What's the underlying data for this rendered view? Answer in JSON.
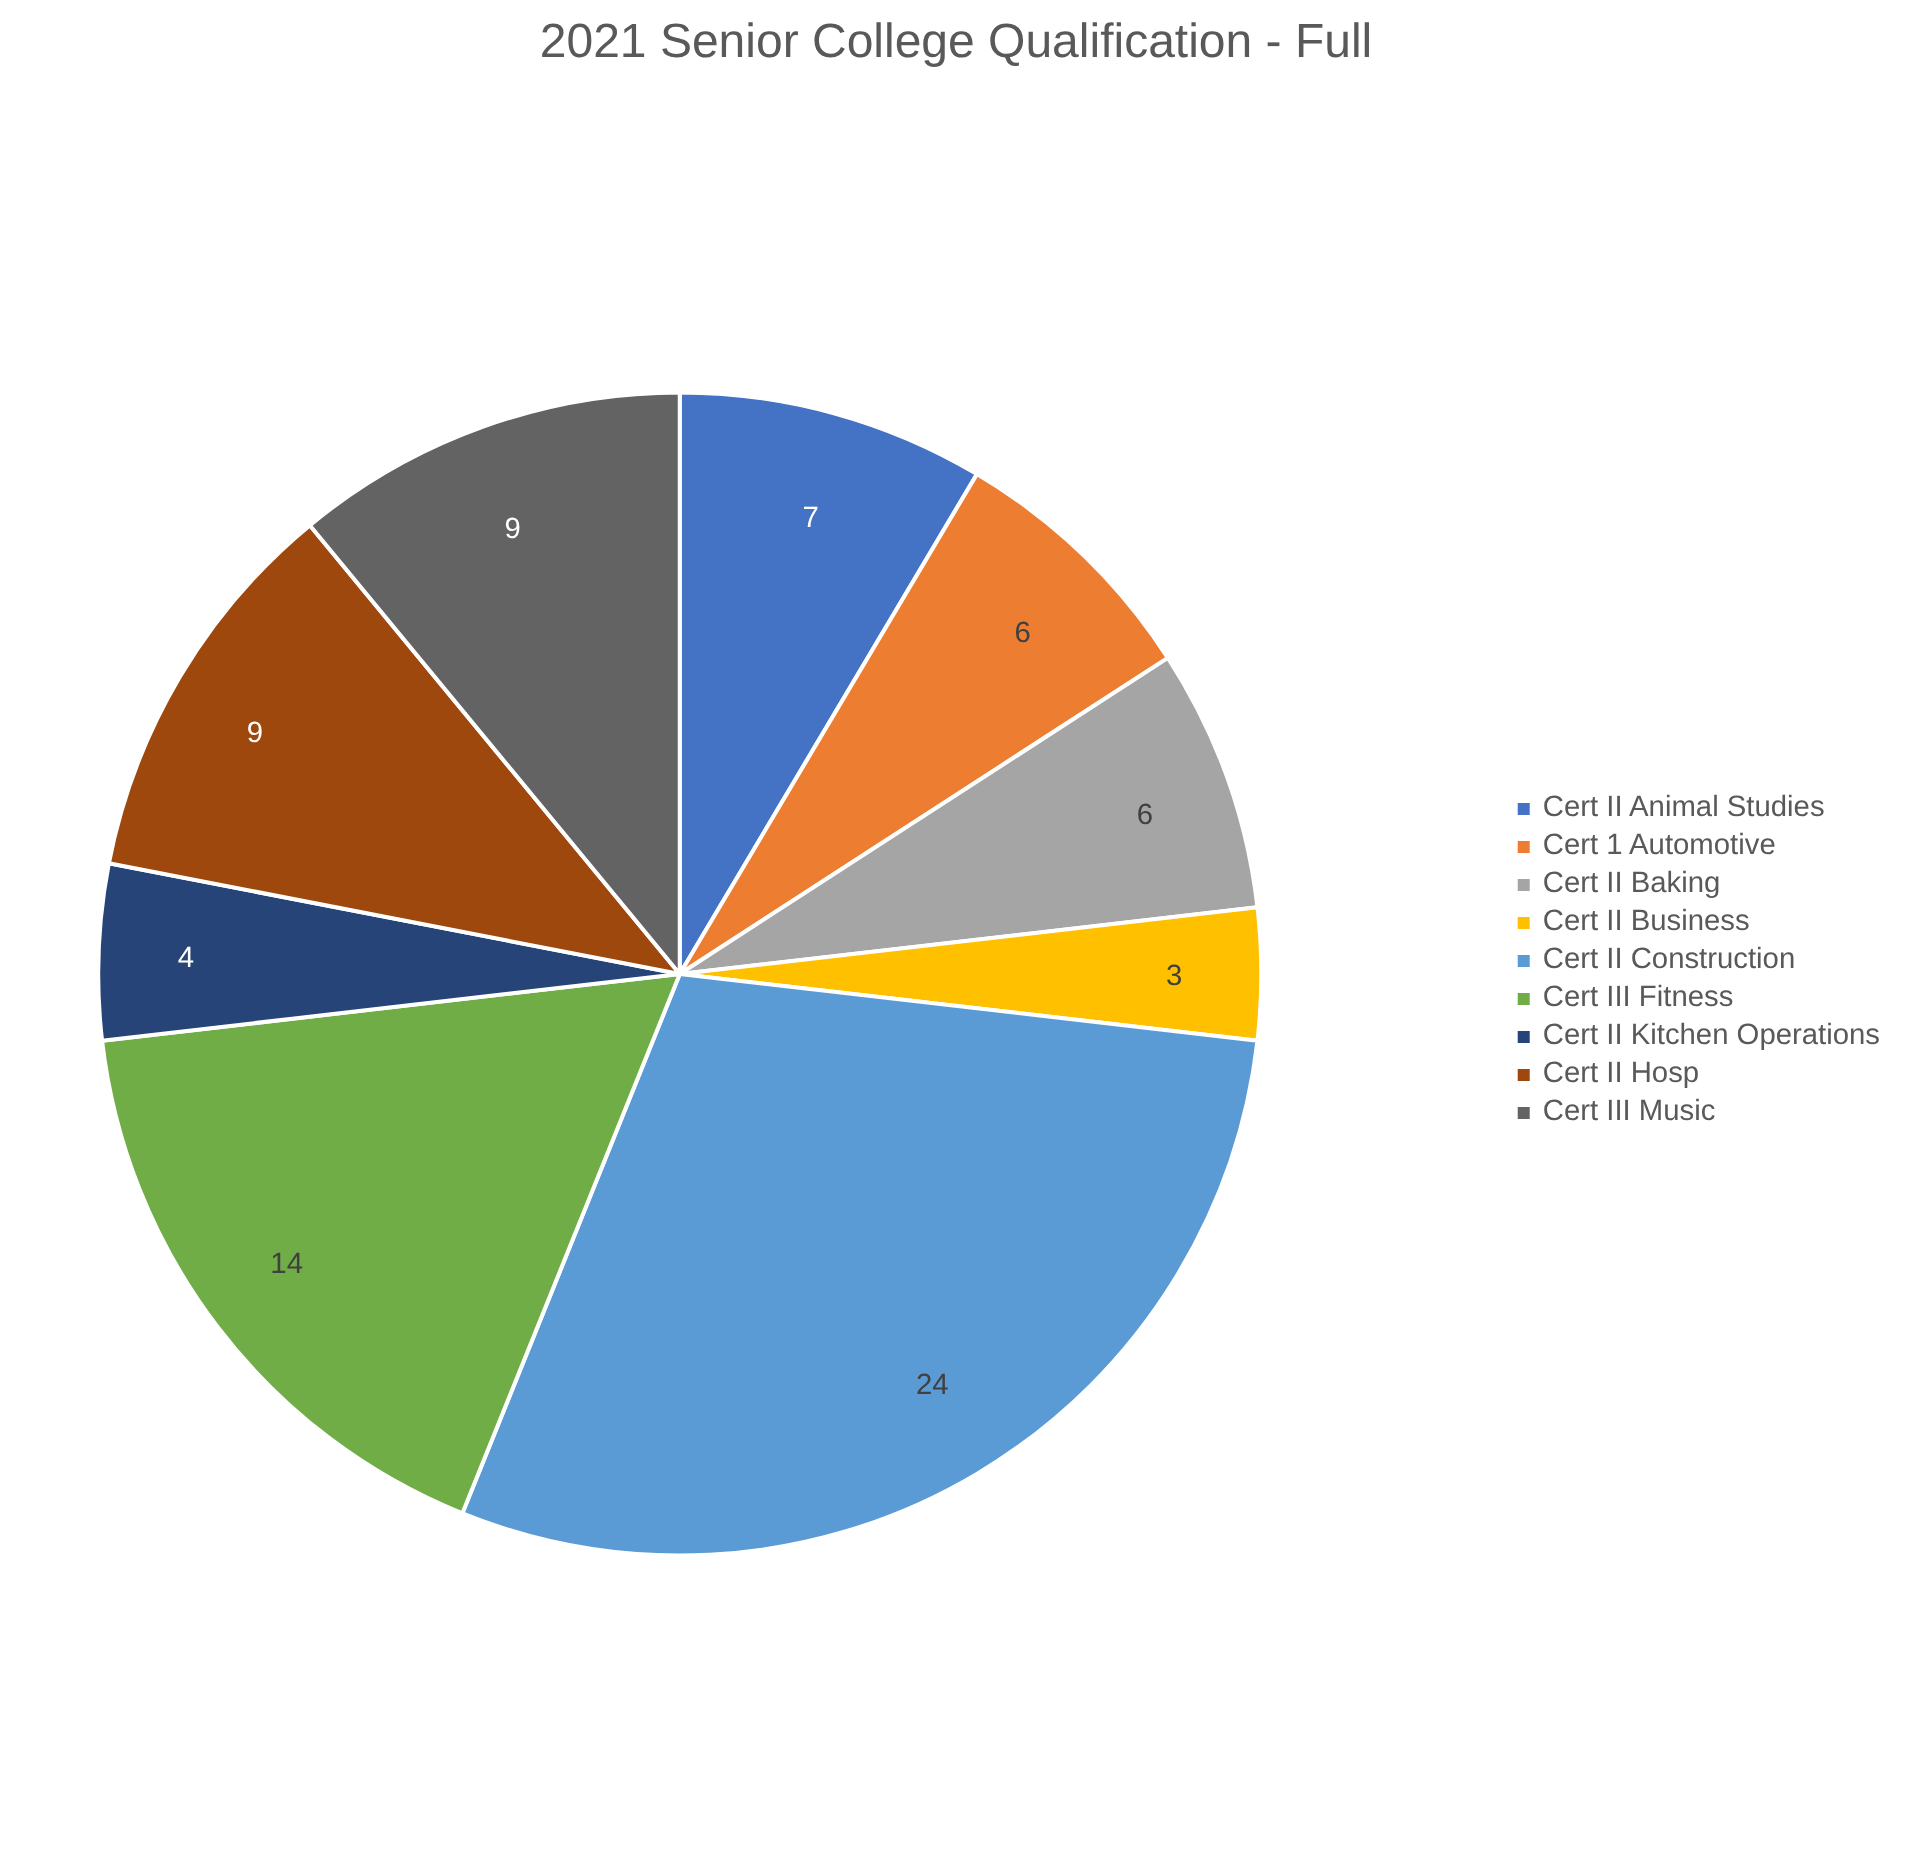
{
  "chart_data": {
    "type": "pie",
    "title": "2021 Senior College Qualification - Full",
    "categories": [
      "Cert II Animal Studies",
      "Cert 1 Automotive",
      "Cert II Baking",
      "Cert II Business",
      "Cert II Construction",
      "Cert III Fitness",
      "Cert II Kitchen Operations",
      "Cert II Hosp",
      "Cert III Music"
    ],
    "values": [
      7,
      6,
      6,
      3,
      24,
      14,
      4,
      9,
      9
    ],
    "colors": [
      "#4472c4",
      "#ed7d31",
      "#a5a5a5",
      "#ffc000",
      "#5b9bd5",
      "#70ad47",
      "#264478",
      "#9e480e",
      "#636363"
    ],
    "data_labels": true,
    "legend": "right"
  }
}
